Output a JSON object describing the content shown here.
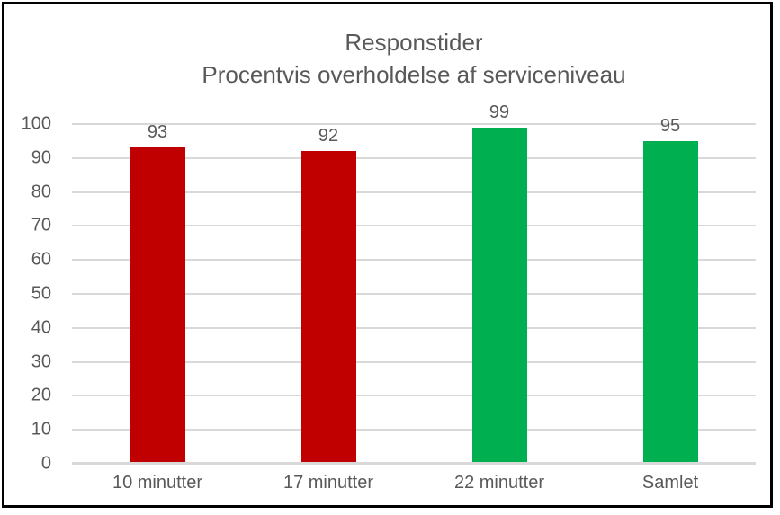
{
  "chart_data": {
    "type": "bar",
    "title": "Responstider Procentvis overholdelse af serviceniveau",
    "title_lines": [
      "Responstider",
      "Procentvis overholdelse af serviceniveau"
    ],
    "categories": [
      "10 minutter",
      "17 minutter",
      "22 minutter",
      "Samlet"
    ],
    "values": [
      93,
      92,
      99,
      95
    ],
    "bar_colors": [
      "#c00000",
      "#c00000",
      "#00b050",
      "#00b050"
    ],
    "data_labels": [
      93,
      92,
      99,
      95
    ],
    "xlabel": "",
    "ylabel": "",
    "ylim": [
      0,
      100
    ],
    "ytick_step": 10,
    "grid": "horizontal",
    "legend": "none"
  },
  "colors": {
    "bar_red": "#c00000",
    "bar_green": "#00b050",
    "text_gray": "#595959",
    "gridline": "#d9d9d9",
    "axis_line": "#d9d9d9",
    "frame_border": "#000000",
    "background": "#ffffff"
  }
}
